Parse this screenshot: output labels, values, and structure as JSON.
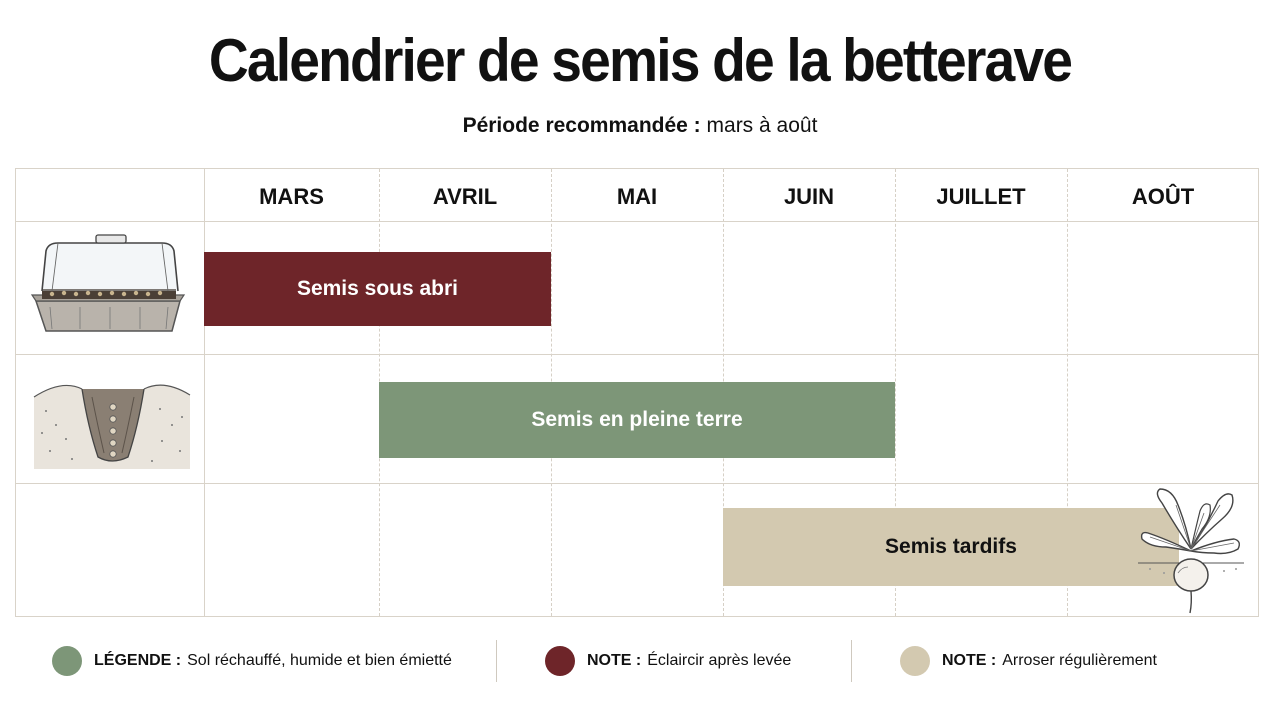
{
  "title": "Calendrier de semis de la betterave",
  "subtitle": {
    "label": "Période recommandée :",
    "value": "mars à août"
  },
  "chart_data": {
    "type": "gantt",
    "categories": [
      "MARS",
      "AVRIL",
      "MAI",
      "JUIN",
      "JUILLET",
      "AOÛT"
    ],
    "tasks": [
      {
        "name": "Semis sous abri",
        "start_month": "MARS",
        "end_month": "AVRIL",
        "color": "#6e2529",
        "text_color": "#ffffff",
        "illustration": "seed-tray-cloche-icon"
      },
      {
        "name": "Semis en pleine terre",
        "start_month": "AVRIL",
        "end_month": "JUIN",
        "color": "#7d9678",
        "text_color": "#ffffff",
        "illustration": "soil-furrow-seeds-icon"
      },
      {
        "name": "Semis tardifs",
        "start_month": "JUIN",
        "end_month": "AOÛT",
        "color": "#d3c9b0",
        "text_color": "#111111",
        "illustration": "beetroot-plant-icon"
      }
    ]
  },
  "legend": [
    {
      "key": "LÉGENDE :",
      "text": "Sol réchauffé, humide et bien émietté",
      "color": "#7d9678"
    },
    {
      "key": "NOTE :",
      "text": "Éclaircir après levée",
      "color": "#6e2529"
    },
    {
      "key": "NOTE :",
      "text": "Arroser régulièrement",
      "color": "#d3c9b0"
    }
  ]
}
